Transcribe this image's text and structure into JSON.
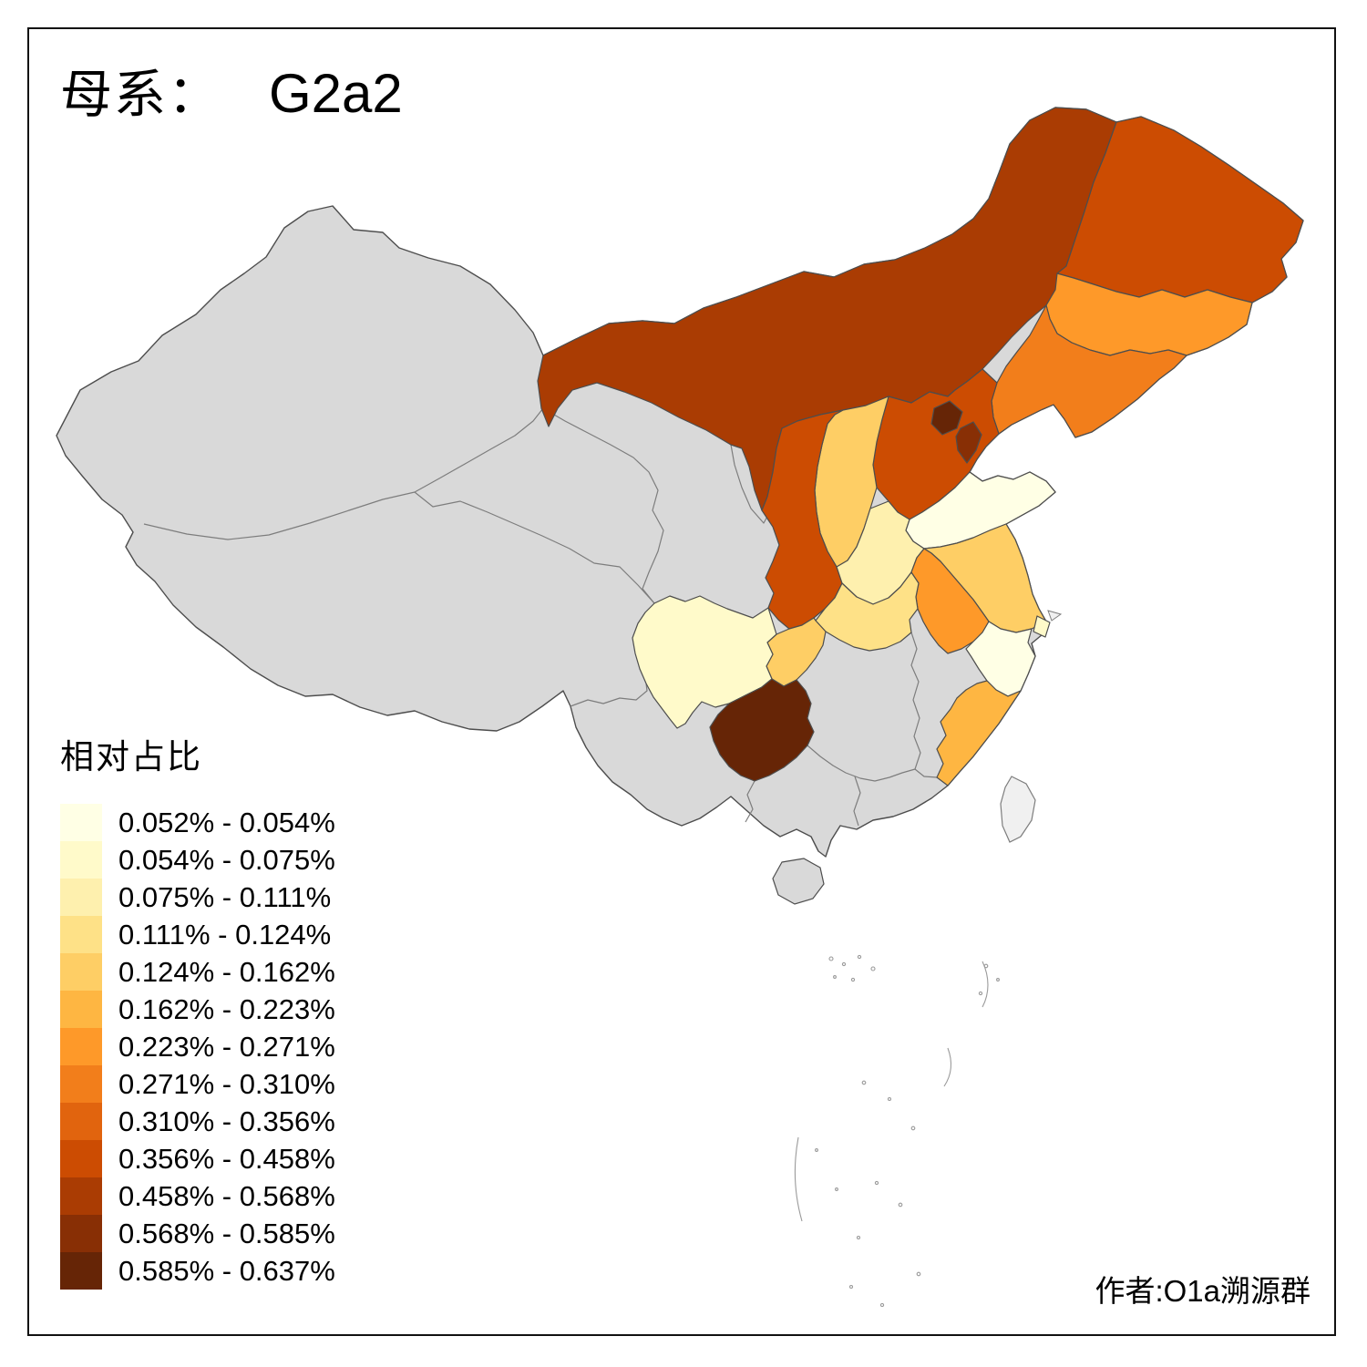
{
  "title": {
    "label_cn": "母系：",
    "haplogroup": "G2a2"
  },
  "legend": {
    "title": "相对占比",
    "bins": [
      {
        "label": "0.052% - 0.054%",
        "color": "#FFFFE5"
      },
      {
        "label": "0.054% - 0.075%",
        "color": "#FFFACA"
      },
      {
        "label": "0.075% - 0.111%",
        "color": "#FEF0AE"
      },
      {
        "label": "0.111% - 0.124%",
        "color": "#FEE187"
      },
      {
        "label": "0.124% - 0.162%",
        "color": "#FECE65"
      },
      {
        "label": "0.162% - 0.223%",
        "color": "#FEB642"
      },
      {
        "label": "0.223% - 0.271%",
        "color": "#FE9929"
      },
      {
        "label": "0.271% - 0.310%",
        "color": "#F27E1B"
      },
      {
        "label": "0.310% - 0.356%",
        "color": "#E1640E"
      },
      {
        "label": "0.356% - 0.458%",
        "color": "#CC4C02"
      },
      {
        "label": "0.458% - 0.568%",
        "color": "#AA3C03"
      },
      {
        "label": "0.568% - 0.585%",
        "color": "#882F05"
      },
      {
        "label": "0.585% - 0.637%",
        "color": "#662506"
      }
    ]
  },
  "credit": "作者:O1a溯源群",
  "map": {
    "no_data_color": "#D9D9D9",
    "island_color": "#F0F0F0",
    "border_color": "#4D4D4D",
    "sea_mark_color": "#9A9A9A",
    "regions": [
      {
        "id": "inner-mongolia",
        "bin": 10
      },
      {
        "id": "heilongjiang",
        "bin": 9
      },
      {
        "id": "jilin",
        "bin": 6
      },
      {
        "id": "liaoning",
        "bin": 7
      },
      {
        "id": "hebei",
        "bin": 9
      },
      {
        "id": "beijing",
        "bin": 12
      },
      {
        "id": "tianjin",
        "bin": 11
      },
      {
        "id": "shanxi",
        "bin": 4
      },
      {
        "id": "shaanxi",
        "bin": 9
      },
      {
        "id": "shandong",
        "bin": 0
      },
      {
        "id": "henan",
        "bin": 2
      },
      {
        "id": "jiangsu",
        "bin": 4
      },
      {
        "id": "anhui",
        "bin": 6
      },
      {
        "id": "shanghai",
        "bin": 1
      },
      {
        "id": "zhejiang",
        "bin": 0
      },
      {
        "id": "hubei",
        "bin": 3
      },
      {
        "id": "chongqing",
        "bin": 4
      },
      {
        "id": "sichuan",
        "bin": 1
      },
      {
        "id": "guizhou",
        "bin": 12
      },
      {
        "id": "fujian",
        "bin": 5
      }
    ]
  }
}
